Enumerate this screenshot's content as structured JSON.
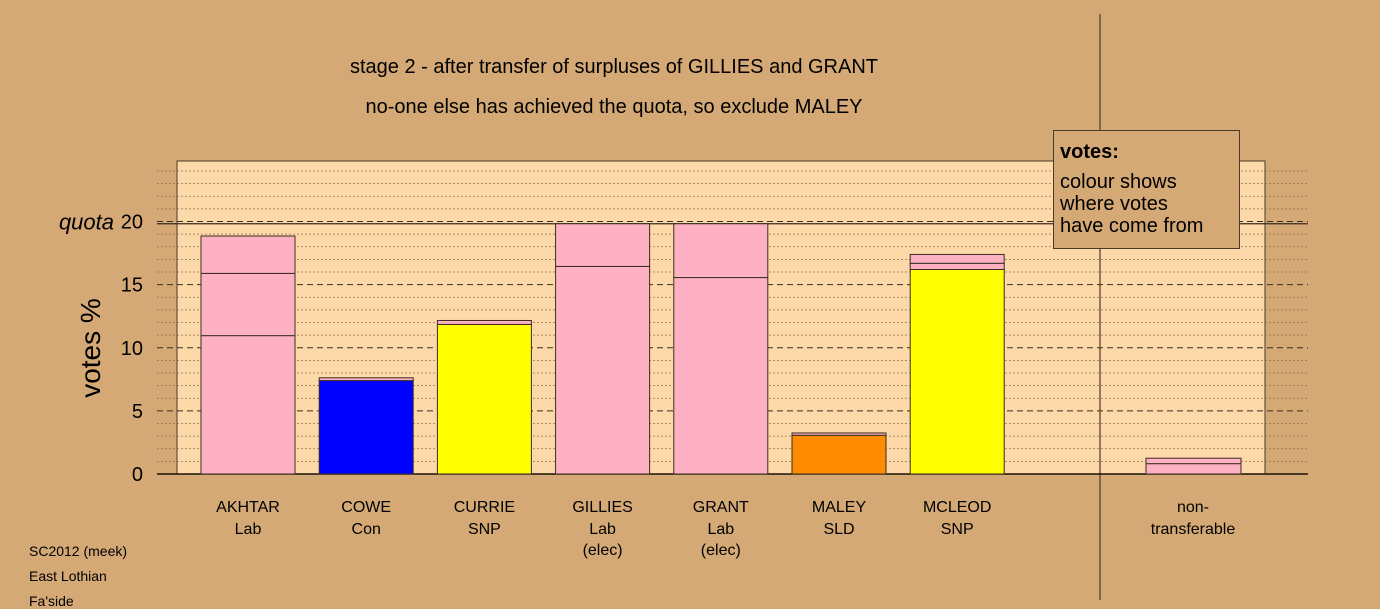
{
  "chart_data": {
    "type": "bar",
    "title": "stage 2 - after transfer of surpluses of GILLIES and GRANT",
    "subtitle": "no-one else has achieved the quota, so exclude MALEY",
    "ylabel": "votes %",
    "ylim": [
      0,
      20
    ],
    "yticks": [
      "0",
      "5",
      "10",
      "15",
      "20"
    ],
    "quota": 19.82,
    "quota_label": "quota",
    "grid": true,
    "categories": [
      {
        "name": "AKHTAR",
        "party": "Lab",
        "status": ""
      },
      {
        "name": "COWE",
        "party": "Con",
        "status": ""
      },
      {
        "name": "CURRIE",
        "party": "SNP",
        "status": ""
      },
      {
        "name": "GILLIES",
        "party": "Lab",
        "status": "(elec)"
      },
      {
        "name": "GRANT",
        "party": "Lab",
        "status": "(elec)"
      },
      {
        "name": "MALEY",
        "party": "SLD",
        "status": ""
      },
      {
        "name": "MCLEOD",
        "party": "SNP",
        "status": ""
      }
    ],
    "stacks": [
      [
        {
          "value": 10.96,
          "color": "#ffb1c4"
        },
        {
          "value": 4.93,
          "color": "#ffb1c4"
        },
        {
          "value": 2.96,
          "color": "#ffb1c4"
        }
      ],
      [
        {
          "value": 7.4,
          "color": "#0000ff"
        },
        {
          "value": 0.22,
          "color": "#ffb1c4"
        }
      ],
      [
        {
          "value": 11.85,
          "color": "#ffff00"
        },
        {
          "value": 0.31,
          "color": "#ffb1c4"
        }
      ],
      [
        {
          "value": 16.44,
          "color": "#ffb1c4"
        },
        {
          "value": 3.38,
          "color": "#ffb1c4"
        }
      ],
      [
        {
          "value": 15.56,
          "color": "#ffb1c4"
        },
        {
          "value": 4.26,
          "color": "#ffb1c4"
        }
      ],
      [
        {
          "value": 3.07,
          "color": "#ff8c00"
        },
        {
          "value": 0.18,
          "color": "#ffb1c4"
        }
      ],
      [
        {
          "value": 16.2,
          "color": "#ffff00"
        },
        {
          "value": 0.49,
          "color": "#ffb1c4"
        },
        {
          "value": 0.7,
          "color": "#ffb1c4"
        }
      ]
    ],
    "nontransferable": {
      "label_line1": "non-",
      "label_line2": "transferable",
      "stack": [
        {
          "value": 0.82,
          "color": "#ffb1c4"
        },
        {
          "value": 0.43,
          "color": "#ffb1c4"
        }
      ]
    }
  },
  "legend": {
    "title": "votes:",
    "lines": [
      "colour shows",
      "where votes",
      "have come from"
    ]
  },
  "footer": {
    "lines": [
      "SC2012 (meek)",
      "East Lothian",
      "Fa'side"
    ]
  }
}
